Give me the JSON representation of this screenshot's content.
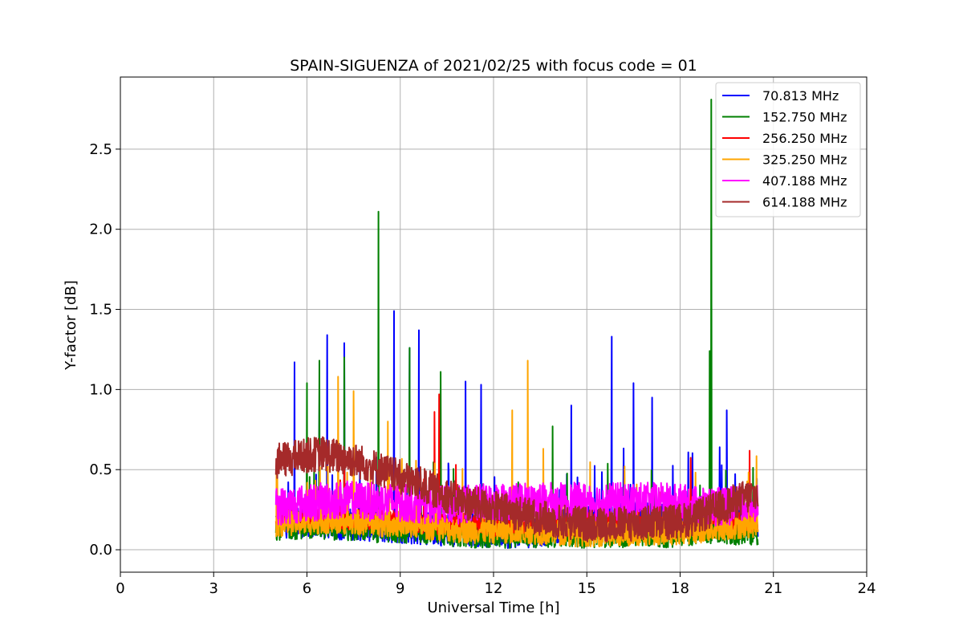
{
  "chart_data": {
    "type": "line",
    "title": "SPAIN-SIGUENZA of 2021/02/25 with focus code = 01",
    "xlabel": "Universal Time [h]",
    "ylabel": "Y-factor [dB]",
    "xlim": [
      0,
      24
    ],
    "ylim": [
      -0.14,
      2.95
    ],
    "xticks": [
      0,
      3,
      6,
      9,
      12,
      15,
      18,
      21,
      24
    ],
    "yticks": [
      0.0,
      0.5,
      1.0,
      1.5,
      2.0,
      2.5
    ],
    "xtick_labels": [
      "0",
      "3",
      "6",
      "9",
      "12",
      "15",
      "18",
      "21",
      "24"
    ],
    "ytick_labels": [
      "0.0",
      "0.5",
      "1.0",
      "1.5",
      "2.0",
      "2.5"
    ],
    "grid": true,
    "legend_position": "top-right",
    "x_range": [
      5.0,
      20.5
    ],
    "series": [
      {
        "name": " 70.813 MHz",
        "color": "#0000ff",
        "x": [
          5.0,
          5.5,
          6.0,
          6.5,
          7.0,
          7.5,
          8.0,
          8.5,
          9.0,
          9.5,
          10.0,
          10.5,
          11.0,
          11.5,
          12.0,
          12.5,
          13.0,
          13.5,
          14.0,
          14.5,
          15.0,
          15.5,
          16.0,
          16.5,
          17.0,
          17.5,
          18.0,
          18.5,
          19.0,
          19.5,
          20.0,
          20.5
        ],
        "y": [
          0.18,
          0.17,
          0.18,
          0.17,
          0.16,
          0.16,
          0.15,
          0.14,
          0.14,
          0.13,
          0.13,
          0.12,
          0.12,
          0.12,
          0.11,
          0.11,
          0.11,
          0.12,
          0.14,
          0.18,
          0.2,
          0.2,
          0.19,
          0.2,
          0.2,
          0.19,
          0.2,
          0.22,
          0.22,
          0.2,
          0.18,
          0.18
        ],
        "spikes": [
          [
            5.6,
            1.17
          ],
          [
            6.4,
            1.0
          ],
          [
            6.65,
            1.34
          ],
          [
            7.2,
            1.29
          ],
          [
            8.8,
            1.49
          ],
          [
            9.3,
            1.26
          ],
          [
            9.6,
            1.37
          ],
          [
            11.1,
            1.05
          ],
          [
            11.6,
            1.03
          ],
          [
            14.5,
            0.9
          ],
          [
            15.8,
            1.33
          ],
          [
            16.5,
            1.04
          ],
          [
            17.1,
            0.95
          ],
          [
            19.5,
            0.87
          ]
        ]
      },
      {
        "name": "152.750 MHz",
        "color": "#008000",
        "x": [
          5.0,
          5.5,
          6.0,
          6.5,
          7.0,
          7.5,
          8.0,
          8.5,
          9.0,
          9.5,
          10.0,
          10.5,
          11.0,
          11.5,
          12.0,
          12.5,
          13.0,
          13.5,
          14.0,
          14.5,
          15.0,
          15.5,
          16.0,
          16.5,
          17.0,
          17.5,
          18.0,
          18.5,
          19.0,
          19.5,
          20.0,
          20.5
        ],
        "y": [
          0.15,
          0.15,
          0.16,
          0.15,
          0.15,
          0.14,
          0.14,
          0.13,
          0.13,
          0.12,
          0.12,
          0.11,
          0.11,
          0.1,
          0.1,
          0.1,
          0.1,
          0.1,
          0.1,
          0.1,
          0.1,
          0.1,
          0.1,
          0.11,
          0.11,
          0.1,
          0.11,
          0.12,
          0.13,
          0.12,
          0.12,
          0.12
        ],
        "spikes": [
          [
            6.0,
            1.04
          ],
          [
            6.4,
            1.18
          ],
          [
            7.2,
            1.2
          ],
          [
            8.3,
            2.11
          ],
          [
            9.3,
            1.26
          ],
          [
            10.3,
            1.11
          ],
          [
            13.9,
            0.77
          ],
          [
            19.0,
            2.81
          ],
          [
            18.95,
            1.24
          ]
        ]
      },
      {
        "name": "256.250 MHz",
        "color": "#ff0000",
        "x": [
          5.0,
          5.5,
          6.0,
          6.5,
          7.0,
          7.5,
          8.0,
          8.5,
          9.0,
          9.5,
          10.0,
          10.5,
          11.0,
          11.5,
          12.0,
          12.5,
          13.0,
          13.5,
          14.0,
          14.5,
          15.0,
          15.5,
          16.0,
          16.5,
          17.0,
          17.5,
          18.0,
          18.5,
          19.0,
          19.5,
          20.0,
          20.5
        ],
        "y": [
          0.2,
          0.2,
          0.2,
          0.2,
          0.2,
          0.19,
          0.19,
          0.18,
          0.18,
          0.17,
          0.17,
          0.16,
          0.16,
          0.16,
          0.15,
          0.15,
          0.15,
          0.15,
          0.15,
          0.16,
          0.16,
          0.16,
          0.16,
          0.16,
          0.17,
          0.17,
          0.17,
          0.17,
          0.18,
          0.18,
          0.18,
          0.18
        ],
        "spikes": [
          [
            10.25,
            0.97
          ],
          [
            10.1,
            0.86
          ]
        ]
      },
      {
        "name": "325.250 MHz",
        "color": "#ffa500",
        "x": [
          5.0,
          5.5,
          6.0,
          6.5,
          7.0,
          7.5,
          8.0,
          8.5,
          9.0,
          9.5,
          10.0,
          10.5,
          11.0,
          11.5,
          12.0,
          12.5,
          13.0,
          13.5,
          14.0,
          14.5,
          15.0,
          15.5,
          16.0,
          16.5,
          17.0,
          17.5,
          18.0,
          18.5,
          19.0,
          19.5,
          20.0,
          20.5
        ],
        "y": [
          0.16,
          0.17,
          0.17,
          0.18,
          0.18,
          0.17,
          0.17,
          0.16,
          0.16,
          0.15,
          0.14,
          0.13,
          0.12,
          0.12,
          0.12,
          0.12,
          0.12,
          0.11,
          0.11,
          0.1,
          0.1,
          0.1,
          0.1,
          0.1,
          0.11,
          0.11,
          0.11,
          0.12,
          0.13,
          0.14,
          0.15,
          0.16
        ],
        "spikes": [
          [
            7.0,
            1.08
          ],
          [
            7.5,
            0.99
          ],
          [
            8.6,
            0.8
          ],
          [
            12.6,
            0.87
          ],
          [
            13.1,
            1.18
          ],
          [
            13.6,
            0.63
          ]
        ]
      },
      {
        "name": "407.188 MHz",
        "color": "#ff00ff",
        "x": [
          5.0,
          5.5,
          6.0,
          6.5,
          7.0,
          7.5,
          8.0,
          8.5,
          9.0,
          9.5,
          10.0,
          10.5,
          11.0,
          11.5,
          12.0,
          12.5,
          13.0,
          13.5,
          14.0,
          14.5,
          15.0,
          15.5,
          16.0,
          16.5,
          17.0,
          17.5,
          18.0,
          18.5,
          19.0,
          19.5,
          20.0,
          20.5
        ],
        "y": [
          0.27,
          0.28,
          0.29,
          0.3,
          0.31,
          0.31,
          0.3,
          0.3,
          0.29,
          0.29,
          0.28,
          0.28,
          0.28,
          0.29,
          0.3,
          0.3,
          0.3,
          0.3,
          0.3,
          0.3,
          0.3,
          0.3,
          0.3,
          0.3,
          0.3,
          0.3,
          0.29,
          0.28,
          0.27,
          0.27,
          0.28,
          0.3
        ],
        "spikes": []
      },
      {
        "name": "614.188 MHz",
        "color": "#a52a2a",
        "x": [
          5.0,
          5.5,
          6.0,
          6.5,
          7.0,
          7.5,
          8.0,
          8.5,
          9.0,
          9.5,
          10.0,
          10.5,
          11.0,
          11.5,
          12.0,
          12.5,
          13.0,
          13.5,
          14.0,
          14.5,
          15.0,
          15.5,
          16.0,
          16.5,
          17.0,
          17.5,
          18.0,
          18.5,
          19.0,
          19.5,
          20.0,
          20.5
        ],
        "y": [
          0.55,
          0.57,
          0.59,
          0.6,
          0.58,
          0.56,
          0.53,
          0.49,
          0.45,
          0.42,
          0.38,
          0.34,
          0.3,
          0.28,
          0.26,
          0.24,
          0.22,
          0.2,
          0.18,
          0.17,
          0.16,
          0.16,
          0.16,
          0.16,
          0.17,
          0.17,
          0.18,
          0.2,
          0.24,
          0.28,
          0.32,
          0.35
        ],
        "spikes": []
      }
    ]
  }
}
